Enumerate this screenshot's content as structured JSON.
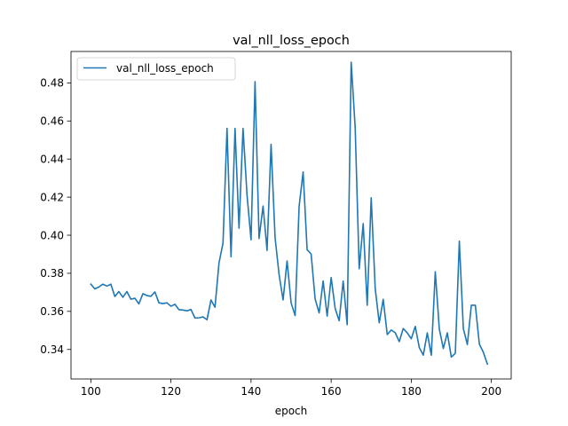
{
  "chart_data": {
    "type": "line",
    "title": "val_nll_loss_epoch",
    "xlabel": "epoch",
    "ylabel": "",
    "xlim": [
      95.05,
      204.95
    ],
    "ylim": [
      0.3245,
      0.4965
    ],
    "xticks": [
      100,
      120,
      140,
      160,
      180,
      200
    ],
    "yticks": [
      0.34,
      0.36,
      0.38,
      0.4,
      0.42,
      0.44,
      0.46,
      0.48
    ],
    "xtick_labels": [
      "100",
      "120",
      "140",
      "160",
      "180",
      "200"
    ],
    "ytick_labels": [
      "0.34",
      "0.36",
      "0.38",
      "0.40",
      "0.42",
      "0.44",
      "0.46",
      "0.48"
    ],
    "grid": false,
    "legend": "top-left",
    "series": [
      {
        "name": "val_nll_loss_epoch",
        "color": "#1f77b4",
        "x": [
          100,
          101,
          102,
          103,
          104,
          105,
          106,
          107,
          108,
          109,
          110,
          111,
          112,
          113,
          114,
          115,
          116,
          117,
          118,
          119,
          120,
          121,
          122,
          123,
          124,
          125,
          126,
          127,
          128,
          129,
          130,
          131,
          132,
          133,
          134,
          135,
          136,
          137,
          138,
          139,
          140,
          141,
          142,
          143,
          144,
          145,
          146,
          147,
          148,
          149,
          150,
          151,
          152,
          153,
          154,
          155,
          156,
          157,
          158,
          159,
          160,
          161,
          162,
          163,
          164,
          165,
          166,
          167,
          168,
          169,
          170,
          171,
          172,
          173,
          174,
          175,
          176,
          177,
          178,
          179,
          180,
          181,
          182,
          183,
          184,
          185,
          186,
          187,
          188,
          189,
          190,
          191,
          192,
          193,
          194,
          195,
          196,
          197,
          198,
          199
        ],
        "values": [
          0.3743,
          0.3718,
          0.3728,
          0.3743,
          0.3733,
          0.3743,
          0.3678,
          0.3704,
          0.3674,
          0.3704,
          0.3664,
          0.3669,
          0.3639,
          0.3693,
          0.3683,
          0.3679,
          0.3702,
          0.3645,
          0.3641,
          0.3645,
          0.3627,
          0.3637,
          0.3609,
          0.3607,
          0.3603,
          0.361,
          0.3565,
          0.3566,
          0.3571,
          0.3556,
          0.366,
          0.3622,
          0.3854,
          0.3959,
          0.4561,
          0.3887,
          0.4561,
          0.4037,
          0.4561,
          0.4211,
          0.3976,
          0.4806,
          0.3983,
          0.4153,
          0.392,
          0.4477,
          0.3987,
          0.3793,
          0.366,
          0.3865,
          0.3645,
          0.3578,
          0.4151,
          0.4332,
          0.3924,
          0.3901,
          0.3665,
          0.3592,
          0.3759,
          0.3575,
          0.3778,
          0.3615,
          0.3551,
          0.3759,
          0.353,
          0.4909,
          0.4565,
          0.3824,
          0.4061,
          0.3632,
          0.4197,
          0.372,
          0.354,
          0.3663,
          0.3478,
          0.3502,
          0.3488,
          0.3441,
          0.351,
          0.3487,
          0.3456,
          0.3521,
          0.341,
          0.337,
          0.3487,
          0.337,
          0.3808,
          0.3508,
          0.3405,
          0.3487,
          0.336,
          0.338,
          0.3969,
          0.351,
          0.3426,
          0.3632,
          0.3632,
          0.3428,
          0.3385,
          0.3323
        ]
      }
    ]
  }
}
